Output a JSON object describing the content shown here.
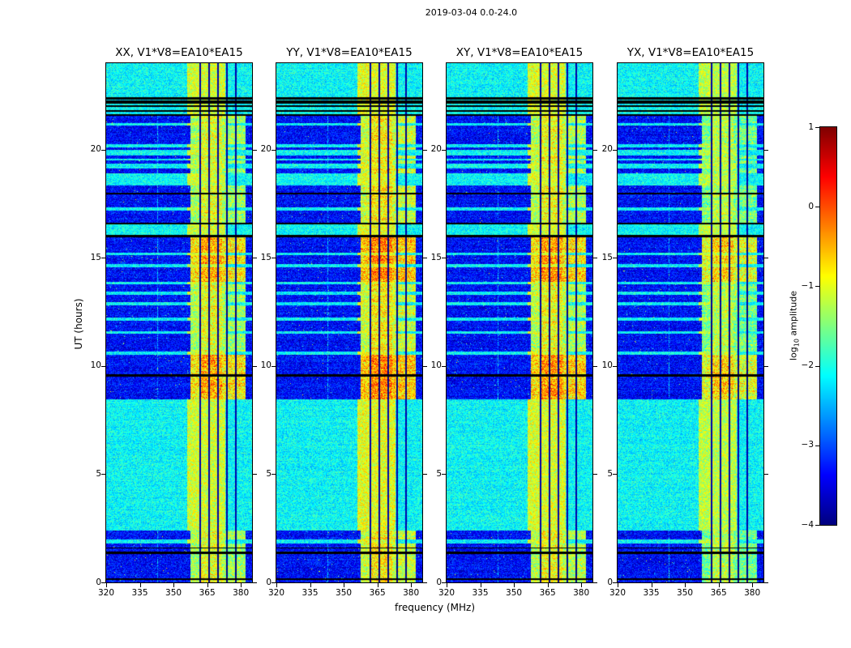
{
  "chart_data": {
    "type": "heatmap",
    "title": "2019-03-04 0.0-24.0",
    "xlabel": "frequency (MHz)",
    "ylabel": "UT (hours)",
    "x_range": [
      320,
      385
    ],
    "y_range": [
      0,
      24
    ],
    "x_ticks": [
      320,
      335,
      350,
      365,
      380
    ],
    "y_ticks": [
      0,
      5,
      10,
      15,
      20
    ],
    "panels": [
      {
        "id": "XX",
        "title": "XX, V1*V8=EA10*EA15",
        "band_gain": 0.25
      },
      {
        "id": "YY",
        "title": "YY, V1*V8=EA10*EA15",
        "band_gain": 0.45
      },
      {
        "id": "XY",
        "title": "XY, V1*V8=EA10*EA15",
        "band_gain": 0.35
      },
      {
        "id": "YX",
        "title": "YX, V1*V8=EA10*EA15",
        "band_gain": 0.05
      }
    ],
    "colorbar": {
      "label_prefix": "log",
      "label_sub": "10",
      "label_suffix": " amplitude",
      "ticks": [
        1,
        0,
        -1,
        -2,
        -3,
        -4
      ],
      "vmin": -4,
      "vmax": 1,
      "colormap": "jet"
    },
    "noise_floor": -3.8,
    "rfi_band": {
      "f0": 357.5,
      "f1": 382.0,
      "base": -2.2
    },
    "rfi_subband": {
      "f0": 361.5,
      "f1": 371.5,
      "boost": 0.35
    },
    "dark_channels_mhz": [
      361.8,
      365.8,
      369.8,
      373.8,
      377.8
    ],
    "faint_channel_mhz": 343,
    "hot_intervals_ut": [
      [
        8.45,
        10.52
      ],
      [
        13.9,
        16.0
      ]
    ],
    "top_band": {
      "f0": 356.0,
      "f1": 373.0
    },
    "segments": [
      [
        0.0,
        0.12,
        "data"
      ],
      [
        0.12,
        0.18,
        "black"
      ],
      [
        0.18,
        1.32,
        "data"
      ],
      [
        1.32,
        1.42,
        "black"
      ],
      [
        1.42,
        1.56,
        "data"
      ],
      [
        1.56,
        1.62,
        "black"
      ],
      [
        1.62,
        1.8,
        "data"
      ],
      [
        1.8,
        1.98,
        "gap"
      ],
      [
        1.98,
        2.38,
        "data"
      ],
      [
        2.38,
        8.45,
        "gap"
      ],
      [
        8.45,
        9.5,
        "data"
      ],
      [
        9.5,
        9.62,
        "black"
      ],
      [
        9.62,
        10.52,
        "data"
      ],
      [
        10.52,
        10.66,
        "gap"
      ],
      [
        10.66,
        11.48,
        "data"
      ],
      [
        11.48,
        11.62,
        "gap"
      ],
      [
        11.62,
        12.1,
        "data"
      ],
      [
        12.1,
        12.24,
        "gap"
      ],
      [
        12.24,
        12.8,
        "data"
      ],
      [
        12.8,
        12.94,
        "gap"
      ],
      [
        12.94,
        13.3,
        "data"
      ],
      [
        13.3,
        13.44,
        "gap"
      ],
      [
        13.44,
        13.76,
        "data"
      ],
      [
        13.76,
        13.9,
        "gap"
      ],
      [
        13.9,
        14.58,
        "data"
      ],
      [
        14.58,
        14.72,
        "gap"
      ],
      [
        14.72,
        15.12,
        "data"
      ],
      [
        15.12,
        15.24,
        "gap"
      ],
      [
        15.24,
        15.96,
        "data"
      ],
      [
        15.96,
        16.05,
        "black"
      ],
      [
        16.05,
        16.55,
        "gap"
      ],
      [
        16.55,
        16.62,
        "black"
      ],
      [
        16.62,
        17.2,
        "data"
      ],
      [
        17.2,
        17.34,
        "gap"
      ],
      [
        17.34,
        17.92,
        "data"
      ],
      [
        17.92,
        18.02,
        "black"
      ],
      [
        18.02,
        18.36,
        "data"
      ],
      [
        18.36,
        18.92,
        "gap"
      ],
      [
        18.92,
        19.12,
        "data"
      ],
      [
        19.12,
        19.36,
        "gap"
      ],
      [
        19.36,
        19.52,
        "data"
      ],
      [
        19.52,
        19.6,
        "gap"
      ],
      [
        19.6,
        19.72,
        "data"
      ],
      [
        19.72,
        20.0,
        "gap"
      ],
      [
        20.0,
        20.1,
        "data"
      ],
      [
        20.1,
        20.26,
        "gap"
      ],
      [
        20.26,
        21.1,
        "data"
      ],
      [
        21.1,
        21.24,
        "gap"
      ],
      [
        21.24,
        21.56,
        "data"
      ],
      [
        21.56,
        21.64,
        "black"
      ],
      [
        21.64,
        21.76,
        "gap"
      ],
      [
        21.76,
        21.83,
        "black"
      ],
      [
        21.83,
        21.97,
        "gap"
      ],
      [
        21.97,
        22.05,
        "black"
      ],
      [
        22.05,
        22.12,
        "gap"
      ],
      [
        22.12,
        22.28,
        "black"
      ],
      [
        22.28,
        22.32,
        "gap"
      ],
      [
        22.32,
        22.44,
        "black"
      ],
      [
        22.44,
        22.58,
        "gap"
      ],
      [
        22.58,
        23.0,
        "bright"
      ],
      [
        23.0,
        23.07,
        "gap"
      ],
      [
        23.07,
        23.3,
        "bright"
      ],
      [
        23.3,
        23.37,
        "gap"
      ],
      [
        23.37,
        23.58,
        "bright"
      ],
      [
        23.58,
        23.64,
        "gap"
      ],
      [
        23.64,
        23.82,
        "bright"
      ],
      [
        23.82,
        23.88,
        "gap"
      ],
      [
        23.88,
        24.0,
        "bright"
      ]
    ]
  }
}
